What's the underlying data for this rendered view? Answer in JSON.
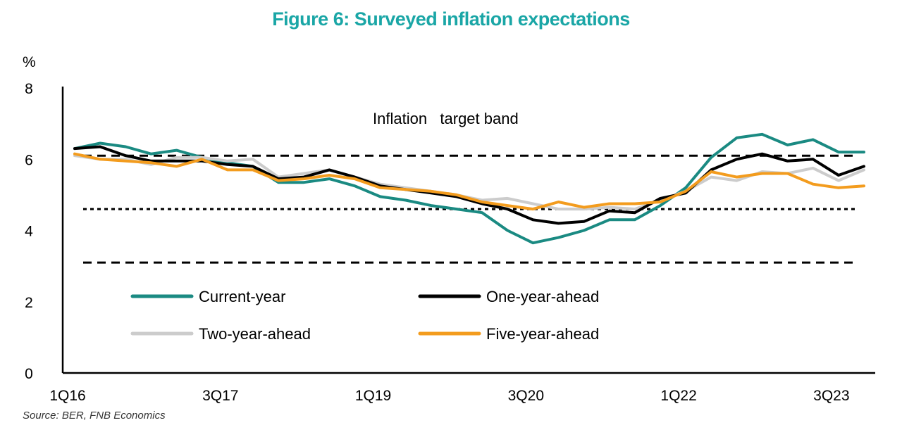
{
  "title": "Figure 6: Surveyed inflation expectations",
  "source": "Source: BER, FNB Economics",
  "colors": {
    "title": "#1aa6a6",
    "current_year": "#1a8a82",
    "one_year_ahead": "#000000",
    "two_year_ahead": "#cccccc",
    "five_year_ahead": "#f39c1e"
  },
  "chart_data": {
    "type": "line",
    "title": "Figure 6: Surveyed inflation expectations",
    "ylabel": "%",
    "annotation": "Inflation   target band",
    "ylim": [
      0,
      8
    ],
    "yticks": [
      0,
      2,
      4,
      6,
      8
    ],
    "xtick_labels": [
      "1Q16",
      "3Q17",
      "1Q19",
      "3Q20",
      "1Q22",
      "3Q23"
    ],
    "grid": false,
    "legend_placement": "lower-center",
    "reference_lines": [
      {
        "y": 6.1,
        "style": "long-dash"
      },
      {
        "y": 4.6,
        "style": "short-dash"
      },
      {
        "y": 3.1,
        "style": "long-dash"
      }
    ],
    "x": [
      "1Q16",
      "2Q16",
      "3Q16",
      "4Q16",
      "1Q17",
      "2Q17",
      "3Q17",
      "4Q17",
      "1Q18",
      "2Q18",
      "3Q18",
      "4Q18",
      "1Q19",
      "2Q19",
      "3Q19",
      "4Q19",
      "1Q20",
      "2Q20",
      "3Q20",
      "4Q20",
      "1Q21",
      "2Q21",
      "3Q21",
      "4Q21",
      "1Q22",
      "2Q22",
      "3Q22",
      "4Q22",
      "1Q23",
      "2Q23",
      "3Q23",
      "4Q23"
    ],
    "series": [
      {
        "name": "Current-year",
        "color": "#1a8a82",
        "values": [
          6.3,
          6.45,
          6.35,
          6.15,
          6.25,
          6.05,
          5.9,
          5.8,
          5.35,
          5.35,
          5.45,
          5.25,
          4.95,
          4.85,
          4.7,
          4.6,
          4.5,
          4.0,
          3.65,
          3.8,
          4.0,
          4.3,
          4.3,
          4.7,
          5.2,
          6.05,
          6.6,
          6.7,
          6.4,
          6.55,
          6.2,
          6.2
        ]
      },
      {
        "name": "One-year-ahead",
        "color": "#000000",
        "values": [
          6.3,
          6.35,
          6.1,
          5.95,
          5.95,
          5.95,
          5.85,
          5.8,
          5.45,
          5.5,
          5.7,
          5.5,
          5.25,
          5.15,
          5.05,
          4.95,
          4.75,
          4.6,
          4.3,
          4.2,
          4.25,
          4.55,
          4.5,
          4.9,
          5.05,
          5.7,
          6.0,
          6.15,
          5.95,
          6.0,
          5.55,
          5.8
        ]
      },
      {
        "name": "Two-year-ahead",
        "color": "#cccccc",
        "values": [
          6.1,
          6.0,
          6.0,
          5.85,
          6.05,
          6.05,
          5.95,
          6.0,
          5.5,
          5.6,
          5.7,
          5.5,
          5.3,
          5.2,
          5.1,
          5.0,
          4.85,
          4.9,
          4.75,
          4.6,
          4.6,
          4.65,
          4.6,
          4.85,
          5.1,
          5.5,
          5.4,
          5.65,
          5.6,
          5.75,
          5.4,
          5.7
        ]
      },
      {
        "name": "Five-year-ahead",
        "color": "#f39c1e",
        "values": [
          6.15,
          6.0,
          5.95,
          5.9,
          5.8,
          6.0,
          5.7,
          5.7,
          5.4,
          5.45,
          5.55,
          5.45,
          5.2,
          5.15,
          5.1,
          5.0,
          4.8,
          4.7,
          4.6,
          4.8,
          4.65,
          4.75,
          4.75,
          4.8,
          5.1,
          5.65,
          5.5,
          5.6,
          5.6,
          5.3,
          5.2,
          5.25
        ]
      }
    ]
  }
}
